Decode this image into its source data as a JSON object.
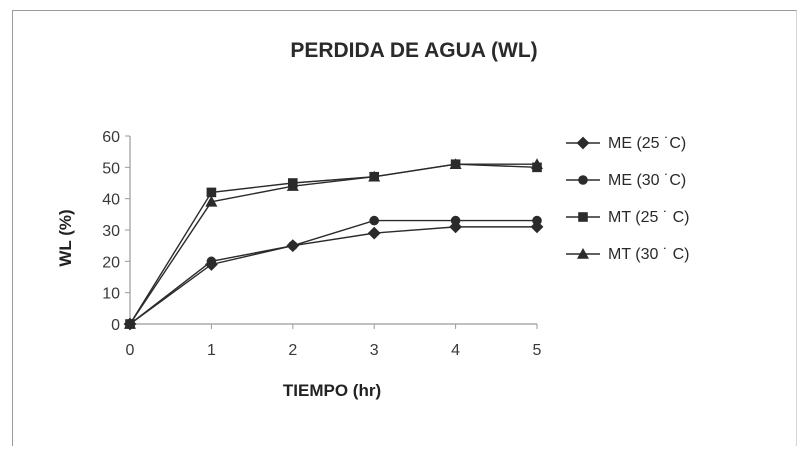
{
  "chart_data": {
    "type": "line",
    "title": "PERDIDA DE AGUA (WL)",
    "xlabel": "TIEMPO (hr)",
    "ylabel": "WL (%)",
    "x": [
      0,
      1,
      2,
      3,
      4,
      5
    ],
    "xlim": [
      0,
      5
    ],
    "ylim": [
      0,
      60
    ],
    "x_ticks": [
      "0",
      "1",
      "2",
      "3",
      "4",
      "5"
    ],
    "y_ticks": [
      "0",
      "10",
      "20",
      "30",
      "40",
      "50",
      "60"
    ],
    "grid": false,
    "legend_position": "right",
    "series": [
      {
        "name": "ME (25 ˙C)",
        "marker": "diamond",
        "values": [
          0,
          19,
          25,
          29,
          31,
          31
        ]
      },
      {
        "name": "ME (30 ˙C)",
        "marker": "circle",
        "values": [
          0,
          20,
          25,
          33,
          33,
          33
        ]
      },
      {
        "name": "MT (25 ˙ C)",
        "marker": "square",
        "values": [
          0,
          42,
          45,
          47,
          51,
          50
        ]
      },
      {
        "name": "MT (30 ˙ C)",
        "marker": "triangle",
        "values": [
          0,
          39,
          44,
          47,
          51,
          51
        ]
      }
    ],
    "colors": {
      "line": "#2b2b2b",
      "axis": "#9a9a9a",
      "text": "#2a2a2a"
    }
  }
}
